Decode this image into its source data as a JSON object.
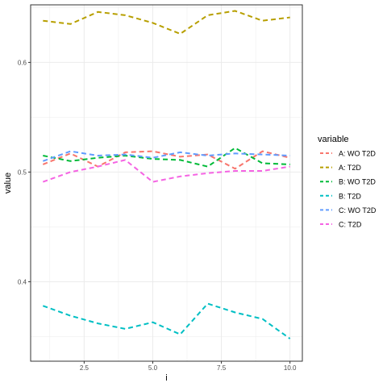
{
  "chart_data": {
    "type": "line",
    "xlabel": "i",
    "ylabel": "value",
    "xlim": [
      0.55,
      10.45
    ],
    "ylim": [
      0.3275,
      0.6525
    ],
    "x_ticks": [
      2.5,
      5.0,
      7.5,
      10.0
    ],
    "x_tick_labels": [
      "2.5",
      "5.0",
      "7.5",
      "10.0"
    ],
    "y_ticks": [
      0.4,
      0.5,
      0.6
    ],
    "y_tick_labels": [
      "0.4",
      "0.5",
      "0.6"
    ],
    "grid": true,
    "legend_title": "variable",
    "legend_position": "right",
    "x": [
      1,
      2,
      3,
      4,
      5,
      6,
      7,
      8,
      9,
      10
    ],
    "series": [
      {
        "name": "A: WO T2D",
        "color": "#F8766D",
        "values": [
          0.507,
          0.517,
          0.505,
          0.518,
          0.519,
          0.514,
          0.516,
          0.503,
          0.519,
          0.513
        ]
      },
      {
        "name": "A: T2D",
        "color": "#B79F00",
        "values": [
          0.638,
          0.635,
          0.646,
          0.643,
          0.636,
          0.626,
          0.643,
          0.647,
          0.638,
          0.641
        ]
      },
      {
        "name": "B: WO T2D",
        "color": "#00BA38",
        "values": [
          0.515,
          0.51,
          0.513,
          0.515,
          0.512,
          0.511,
          0.505,
          0.522,
          0.508,
          0.507
        ]
      },
      {
        "name": "B: T2D",
        "color": "#00BFC4",
        "values": [
          0.378,
          0.369,
          0.362,
          0.357,
          0.363,
          0.352,
          0.38,
          0.372,
          0.366,
          0.348
        ]
      },
      {
        "name": "C: WO T2D",
        "color": "#619CFF",
        "values": [
          0.51,
          0.519,
          0.515,
          0.516,
          0.513,
          0.518,
          0.515,
          0.517,
          0.516,
          0.515
        ]
      },
      {
        "name": "C: T2D",
        "color": "#F564E3",
        "values": [
          0.491,
          0.5,
          0.505,
          0.511,
          0.491,
          0.496,
          0.499,
          0.501,
          0.501,
          0.505
        ]
      }
    ]
  }
}
